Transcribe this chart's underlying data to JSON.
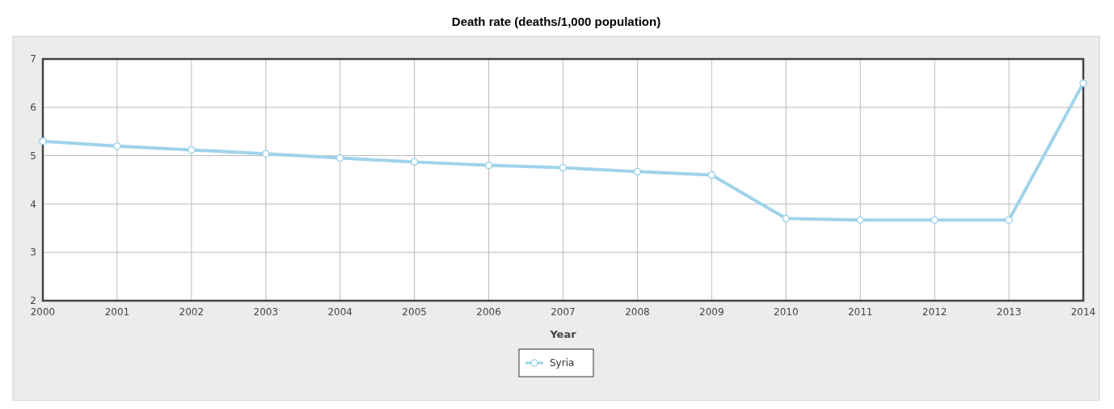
{
  "chart_data": {
    "type": "line",
    "title": "Death rate (deaths/1,000 population)",
    "xlabel": "Year",
    "x": [
      2000,
      2001,
      2002,
      2003,
      2004,
      2005,
      2006,
      2007,
      2008,
      2009,
      2010,
      2011,
      2012,
      2013,
      2014
    ],
    "series": [
      {
        "name": "Syria",
        "color": "#9fd3ea",
        "values": [
          5.3,
          5.2,
          5.12,
          5.04,
          4.95,
          4.87,
          4.8,
          4.75,
          4.67,
          4.6,
          3.7,
          3.67,
          3.67,
          3.67,
          6.5
        ]
      }
    ],
    "xlim": [
      2000,
      2014
    ],
    "xticks": [
      2000,
      2001,
      2002,
      2003,
      2004,
      2005,
      2006,
      2007,
      2008,
      2009,
      2010,
      2011,
      2012,
      2013,
      2014
    ],
    "ylim": [
      2,
      7
    ],
    "yticks": [
      2,
      3,
      4,
      5,
      6,
      7
    ],
    "grid": true,
    "legend": "bottom",
    "marker": "circle",
    "line_style": "solid"
  }
}
